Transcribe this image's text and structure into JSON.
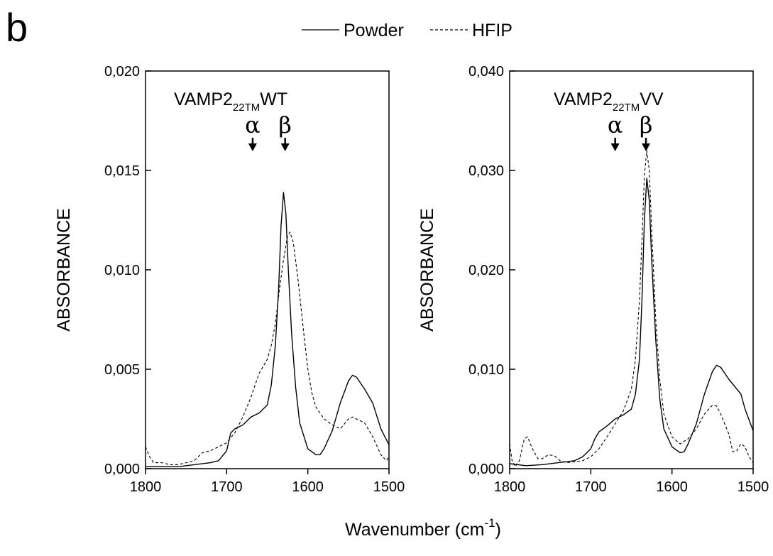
{
  "panel_letter": "b",
  "legend": {
    "items": [
      {
        "label": "Powder",
        "style": "solid"
      },
      {
        "label": "HFIP",
        "style": "dashed"
      }
    ]
  },
  "xlabel": {
    "text": "Wavenumber (cm",
    "sup": "-1",
    "close": ")"
  },
  "chart_data": [
    {
      "type": "line",
      "title": {
        "base": "VAMP2",
        "sub": "22TM",
        "suffix": "WT"
      },
      "ylabel": "ABSORBANCE",
      "xlim": [
        1800,
        1500
      ],
      "ylim": [
        0,
        0.02
      ],
      "x_ticks": [
        1800,
        1700,
        1600,
        1500
      ],
      "y_ticks": [
        0,
        0.005,
        0.01,
        0.015,
        0.02
      ],
      "y_tick_labels": [
        "0,000",
        "0,005",
        "0,010",
        "0,015",
        "0,020"
      ],
      "annotations": [
        {
          "label": "α",
          "x": 1668
        },
        {
          "label": "β",
          "x": 1628
        }
      ],
      "series": [
        {
          "name": "Powder",
          "style": "solid",
          "points": [
            [
              1800,
              0.0001
            ],
            [
              1780,
              0.0001
            ],
            [
              1760,
              0.0001
            ],
            [
              1740,
              0.0002
            ],
            [
              1720,
              0.0003
            ],
            [
              1710,
              0.0004
            ],
            [
              1700,
              0.0009
            ],
            [
              1695,
              0.0018
            ],
            [
              1690,
              0.002
            ],
            [
              1680,
              0.0022
            ],
            [
              1670,
              0.0026
            ],
            [
              1660,
              0.0028
            ],
            [
              1650,
              0.0032
            ],
            [
              1645,
              0.0042
            ],
            [
              1640,
              0.0062
            ],
            [
              1636,
              0.009
            ],
            [
              1633,
              0.0122
            ],
            [
              1630,
              0.0139
            ],
            [
              1627,
              0.0128
            ],
            [
              1624,
              0.01
            ],
            [
              1620,
              0.0068
            ],
            [
              1615,
              0.0041
            ],
            [
              1610,
              0.0023
            ],
            [
              1600,
              0.001
            ],
            [
              1590,
              0.0007
            ],
            [
              1585,
              0.0007
            ],
            [
              1580,
              0.001
            ],
            [
              1570,
              0.0019
            ],
            [
              1560,
              0.0033
            ],
            [
              1550,
              0.0044
            ],
            [
              1545,
              0.0047
            ],
            [
              1540,
              0.0046
            ],
            [
              1530,
              0.004
            ],
            [
              1520,
              0.0033
            ],
            [
              1510,
              0.002
            ],
            [
              1500,
              0.0012
            ]
          ]
        },
        {
          "name": "HFIP",
          "style": "dashed",
          "points": [
            [
              1800,
              0.0011
            ],
            [
              1795,
              0.0006
            ],
            [
              1790,
              0.0003
            ],
            [
              1780,
              0.0003
            ],
            [
              1770,
              0.0002
            ],
            [
              1760,
              0.0002
            ],
            [
              1750,
              0.0003
            ],
            [
              1740,
              0.0004
            ],
            [
              1730,
              0.0008
            ],
            [
              1720,
              0.0009
            ],
            [
              1710,
              0.0011
            ],
            [
              1700,
              0.0013
            ],
            [
              1690,
              0.0018
            ],
            [
              1680,
              0.0026
            ],
            [
              1670,
              0.0036
            ],
            [
              1660,
              0.0048
            ],
            [
              1650,
              0.0055
            ],
            [
              1645,
              0.0062
            ],
            [
              1640,
              0.0073
            ],
            [
              1635,
              0.009
            ],
            [
              1630,
              0.0105
            ],
            [
              1625,
              0.0117
            ],
            [
              1622,
              0.0119
            ],
            [
              1618,
              0.0114
            ],
            [
              1612,
              0.0095
            ],
            [
              1605,
              0.0068
            ],
            [
              1600,
              0.005
            ],
            [
              1595,
              0.0038
            ],
            [
              1590,
              0.0031
            ],
            [
              1580,
              0.0025
            ],
            [
              1570,
              0.0022
            ],
            [
              1560,
              0.002
            ],
            [
              1550,
              0.0025
            ],
            [
              1545,
              0.0026
            ],
            [
              1540,
              0.0025
            ],
            [
              1530,
              0.0023
            ],
            [
              1520,
              0.0016
            ],
            [
              1510,
              0.0007
            ],
            [
              1503,
              0.0004
            ],
            [
              1500,
              0.0006
            ]
          ]
        }
      ]
    },
    {
      "type": "line",
      "title": {
        "base": "VAMP2",
        "sub": "22TM",
        "suffix": "VV"
      },
      "ylabel": "ABSORBANCE",
      "xlim": [
        1800,
        1500
      ],
      "ylim": [
        0,
        0.04
      ],
      "x_ticks": [
        1800,
        1700,
        1600,
        1500
      ],
      "y_ticks": [
        0,
        0.01,
        0.02,
        0.03,
        0.04
      ],
      "y_tick_labels": [
        "0,000",
        "0,010",
        "0,020",
        "0,030",
        "0,040"
      ],
      "annotations": [
        {
          "label": "α",
          "x": 1670
        },
        {
          "label": "β",
          "x": 1632
        }
      ],
      "series": [
        {
          "name": "Powder",
          "style": "solid",
          "points": [
            [
              1800,
              0.0005
            ],
            [
              1780,
              0.0003
            ],
            [
              1760,
              0.0004
            ],
            [
              1740,
              0.0006
            ],
            [
              1720,
              0.0008
            ],
            [
              1710,
              0.0012
            ],
            [
              1700,
              0.002
            ],
            [
              1695,
              0.003
            ],
            [
              1690,
              0.0037
            ],
            [
              1680,
              0.0043
            ],
            [
              1670,
              0.005
            ],
            [
              1660,
              0.0054
            ],
            [
              1650,
              0.006
            ],
            [
              1645,
              0.0075
            ],
            [
              1640,
              0.011
            ],
            [
              1637,
              0.017
            ],
            [
              1634,
              0.025
            ],
            [
              1631,
              0.0292
            ],
            [
              1628,
              0.027
            ],
            [
              1625,
              0.021
            ],
            [
              1620,
              0.013
            ],
            [
              1615,
              0.007
            ],
            [
              1610,
              0.004
            ],
            [
              1600,
              0.0022
            ],
            [
              1590,
              0.0016
            ],
            [
              1585,
              0.0017
            ],
            [
              1580,
              0.0025
            ],
            [
              1570,
              0.0045
            ],
            [
              1560,
              0.0075
            ],
            [
              1550,
              0.0098
            ],
            [
              1545,
              0.0104
            ],
            [
              1540,
              0.0102
            ],
            [
              1530,
              0.009
            ],
            [
              1520,
              0.008
            ],
            [
              1515,
              0.0075
            ],
            [
              1510,
              0.006
            ],
            [
              1500,
              0.0038
            ]
          ]
        },
        {
          "name": "HFIP",
          "style": "dashed",
          "points": [
            [
              1800,
              0.0025
            ],
            [
              1797,
              0.0008
            ],
            [
              1793,
              0.0002
            ],
            [
              1788,
              0.0008
            ],
            [
              1782,
              0.003
            ],
            [
              1778,
              0.0032
            ],
            [
              1772,
              0.002
            ],
            [
              1765,
              0.001
            ],
            [
              1760,
              0.001
            ],
            [
              1752,
              0.0014
            ],
            [
              1745,
              0.0013
            ],
            [
              1738,
              0.0008
            ],
            [
              1730,
              0.0006
            ],
            [
              1720,
              0.0007
            ],
            [
              1710,
              0.0008
            ],
            [
              1700,
              0.0012
            ],
            [
              1690,
              0.002
            ],
            [
              1680,
              0.0032
            ],
            [
              1670,
              0.0045
            ],
            [
              1660,
              0.0058
            ],
            [
              1650,
              0.008
            ],
            [
              1645,
              0.011
            ],
            [
              1640,
              0.017
            ],
            [
              1637,
              0.023
            ],
            [
              1634,
              0.0295
            ],
            [
              1631,
              0.032
            ],
            [
              1628,
              0.03
            ],
            [
              1625,
              0.024
            ],
            [
              1620,
              0.015
            ],
            [
              1615,
              0.009
            ],
            [
              1610,
              0.0055
            ],
            [
              1600,
              0.0032
            ],
            [
              1590,
              0.0025
            ],
            [
              1580,
              0.003
            ],
            [
              1570,
              0.004
            ],
            [
              1560,
              0.0055
            ],
            [
              1550,
              0.0064
            ],
            [
              1545,
              0.0063
            ],
            [
              1540,
              0.0055
            ],
            [
              1530,
              0.0035
            ],
            [
              1525,
              0.0017
            ],
            [
              1520,
              0.0018
            ],
            [
              1515,
              0.0025
            ],
            [
              1510,
              0.0022
            ],
            [
              1505,
              0.0012
            ],
            [
              1500,
              0.0006
            ]
          ]
        }
      ]
    }
  ]
}
